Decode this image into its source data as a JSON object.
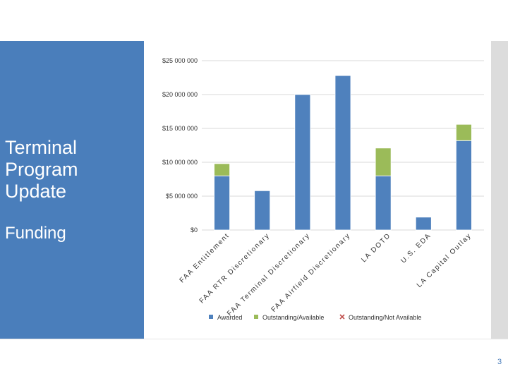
{
  "slide": {
    "title": "Terminal Program Update",
    "subtitle": "Funding",
    "page_number": "3"
  },
  "colors": {
    "panel": "#4a7ebb",
    "awarded": "#4f81bd",
    "outstanding_available": "#9bbb59",
    "outstanding_not_available": "#c0504d"
  },
  "chart_data": {
    "type": "bar",
    "stacked": true,
    "title": "",
    "xlabel": "",
    "ylabel": "",
    "ylim": [
      0,
      25000000
    ],
    "yticks": [
      0,
      5000000,
      10000000,
      15000000,
      20000000,
      25000000
    ],
    "ytick_labels": [
      "$0",
      "$5 000 000",
      "$10 000 000",
      "$15 000 000",
      "$20 000 000",
      "$25 000 000"
    ],
    "grid": true,
    "legend_position": "bottom",
    "categories": [
      "FAA Entitlement",
      "FAA RTR Discretionary",
      "FAA Terminal Discretionary",
      "FAA Airfield Discretionary",
      "LA DOTD",
      "U.S. EDA",
      "LA Capital Outlay"
    ],
    "series": [
      {
        "name": "Awarded",
        "color": "#4f81bd",
        "values": [
          8000000,
          5800000,
          20000000,
          22800000,
          8000000,
          1900000,
          13200000
        ]
      },
      {
        "name": "Outstanding/Available",
        "color": "#9bbb59",
        "values": [
          1800000,
          0,
          0,
          0,
          4100000,
          0,
          2400000
        ]
      },
      {
        "name": "Outstanding/Not Available",
        "color": "#c0504d",
        "values": [
          0,
          0,
          0,
          0,
          0,
          0,
          0
        ]
      }
    ]
  }
}
